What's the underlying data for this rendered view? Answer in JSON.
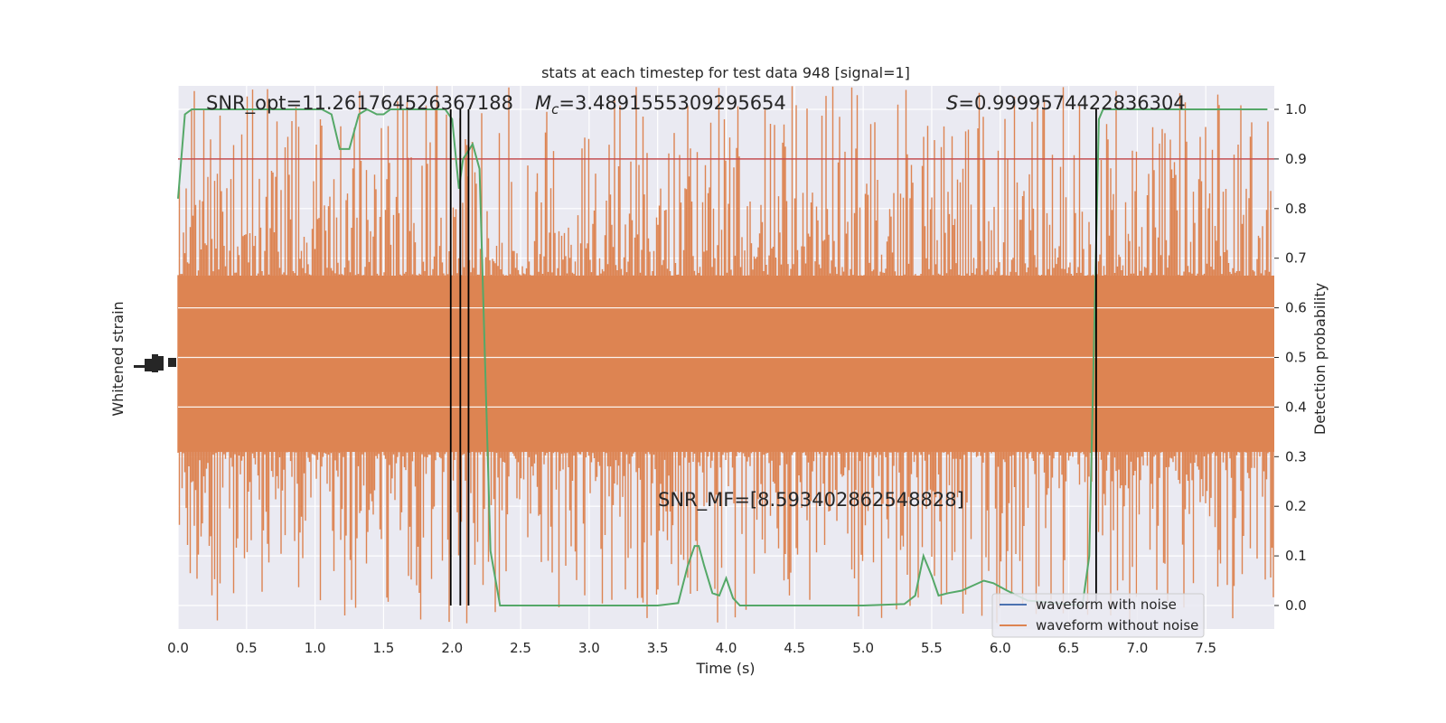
{
  "chart_data": {
    "type": "line",
    "title": "stats at each timestep for test data 948 [signal=1]",
    "xlabel": "Time (s)",
    "ylabel_left": "Whitened strain",
    "ylabel_right": "Detection probability",
    "xlim": [
      0.0,
      8.0
    ],
    "ylim_right": [
      -0.05,
      1.05
    ],
    "xticks": [
      "0.0",
      "0.5",
      "1.0",
      "1.5",
      "2.0",
      "2.5",
      "3.0",
      "3.5",
      "4.0",
      "4.5",
      "5.0",
      "5.5",
      "6.0",
      "6.5",
      "7.0",
      "7.5"
    ],
    "yticks_right": [
      "0.0",
      "0.1",
      "0.2",
      "0.3",
      "0.4",
      "0.5",
      "0.6",
      "0.7",
      "0.8",
      "0.9",
      "1.0"
    ],
    "threshold": 0.9,
    "detection_markers": [
      1.99,
      2.06,
      2.12,
      6.7
    ],
    "annotations": {
      "snr_opt": "SNR_opt=11.261764526367188",
      "mc_symbol": "M",
      "mc_sub": "c",
      "mc_value": "=3.4891555309295654",
      "s_symbol": "S",
      "s_value": "=0.9999574422836304",
      "snr_mf": "SNR_MF=[8.593402862548828]"
    },
    "legend": {
      "position": "lower-right",
      "entries": [
        "waveform with noise",
        "waveform without noise"
      ]
    },
    "series": [
      {
        "name": "waveform with noise",
        "color": "#4c72b0"
      },
      {
        "name": "waveform without noise",
        "color": "#dd8452"
      },
      {
        "color": "#55a868",
        "x": [
          0.0,
          0.05,
          0.1,
          0.2,
          0.5,
          0.8,
          1.0,
          1.05,
          1.12,
          1.18,
          1.25,
          1.32,
          1.38,
          1.45,
          1.5,
          1.55,
          1.6,
          1.8,
          1.95,
          2.0,
          2.05,
          2.08,
          2.15,
          2.2,
          2.28,
          2.35,
          2.45,
          2.6,
          3.0,
          3.5,
          3.65,
          3.72,
          3.77,
          3.8,
          3.84,
          3.9,
          3.95,
          4.0,
          4.05,
          4.1,
          4.3,
          4.6,
          5.0,
          5.3,
          5.38,
          5.44,
          5.5,
          5.55,
          5.62,
          5.72,
          5.8,
          5.88,
          5.95,
          6.05,
          6.2,
          6.6,
          6.65,
          6.68,
          6.72,
          6.75,
          6.8,
          6.9,
          7.2,
          7.6,
          7.95
        ],
        "values": [
          0.82,
          0.99,
          1.0,
          1.0,
          1.0,
          1.0,
          1.0,
          1.0,
          0.99,
          0.92,
          0.92,
          0.99,
          1.0,
          0.99,
          0.99,
          1.0,
          1.0,
          1.0,
          1.0,
          0.98,
          0.84,
          0.9,
          0.93,
          0.88,
          0.11,
          0.0,
          0.0,
          0.0,
          0.0,
          0.0,
          0.005,
          0.08,
          0.12,
          0.12,
          0.08,
          0.025,
          0.02,
          0.055,
          0.015,
          0.0,
          0.0,
          0.0,
          0.0,
          0.003,
          0.02,
          0.1,
          0.06,
          0.02,
          0.025,
          0.03,
          0.04,
          0.05,
          0.045,
          0.03,
          0.01,
          0.0,
          0.1,
          0.48,
          0.98,
          1.0,
          1.0,
          1.0,
          1.0,
          1.0,
          1.0
        ]
      }
    ]
  }
}
